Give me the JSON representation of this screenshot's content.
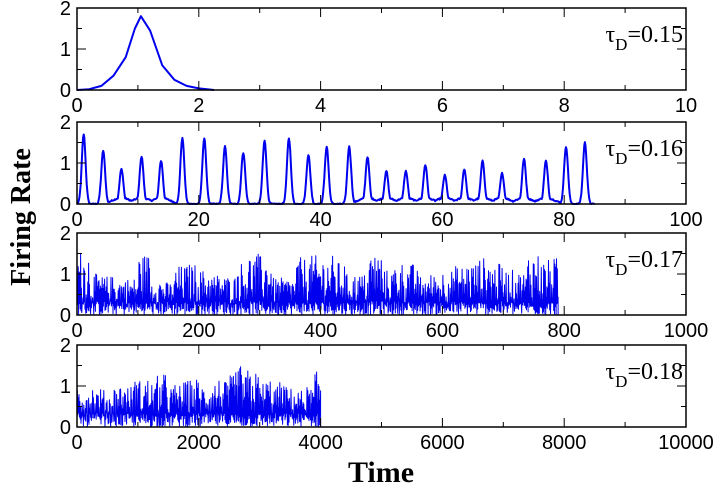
{
  "chart_data": {
    "type": "line",
    "ylabel": "Firing Rate",
    "xlabel": "Time",
    "line_color": "#0000ee",
    "grid": false,
    "panels": [
      {
        "annotation": {
          "tau": "τ",
          "sub": "D",
          "value": "=0.15"
        },
        "xlim": [
          0,
          10
        ],
        "ylim": [
          0,
          2
        ],
        "xticks": [
          "0",
          "2",
          "4",
          "6",
          "8",
          "10"
        ],
        "yticks": [
          "0",
          "1",
          "2"
        ],
        "x": [
          0,
          0.2,
          0.4,
          0.6,
          0.8,
          0.95,
          1.05,
          1.2,
          1.4,
          1.6,
          1.8,
          2.0,
          2.25
        ],
        "y": [
          0,
          0.02,
          0.1,
          0.35,
          0.8,
          1.5,
          1.8,
          1.45,
          0.6,
          0.25,
          0.1,
          0.04,
          0
        ]
      },
      {
        "annotation": {
          "tau": "τ",
          "sub": "D",
          "value": "=0.16"
        },
        "xlim": [
          0,
          100
        ],
        "ylim": [
          0,
          2
        ],
        "xticks": [
          "0",
          "20",
          "40",
          "60",
          "80",
          "100"
        ],
        "yticks": [
          "0",
          "1",
          "2"
        ],
        "x_end": 85,
        "peak_times": [
          1.1,
          4.3,
          7.3,
          10.6,
          13.8,
          17.3,
          20.9,
          24.3,
          27.3,
          30.8,
          34.8,
          38,
          41,
          44.7,
          47.7,
          50.8,
          54,
          57.2,
          60.4,
          63.6,
          66.6,
          69.8,
          73.4,
          77,
          80.3,
          83.4
        ],
        "peak_values": [
          1.7,
          1.3,
          0.85,
          1.15,
          1.05,
          1.6,
          1.6,
          1.4,
          1.25,
          1.55,
          1.6,
          1.2,
          1.4,
          1.4,
          1.15,
          0.8,
          0.8,
          0.95,
          0.7,
          0.85,
          1.05,
          0.75,
          1.1,
          1.05,
          1.4,
          1.5
        ]
      },
      {
        "annotation": {
          "tau": "τ",
          "sub": "D",
          "value": "=0.17"
        },
        "xlim": [
          0,
          1000
        ],
        "ylim": [
          0,
          2
        ],
        "xticks": [
          "0",
          "200",
          "400",
          "600",
          "800",
          "1000"
        ],
        "yticks": [
          "0",
          "1",
          "2"
        ],
        "x_end": 790,
        "envelope_step": 20,
        "envelope_max": [
          1.6,
          1.0,
          0.95,
          0.9,
          0.9,
          1.5,
          0.9,
          0.8,
          1.2,
          1.25,
          1.1,
          1.0,
          0.95,
          1.3,
          1.5,
          1.45,
          0.9,
          0.9,
          1.4,
          1.45,
          1.45,
          1.3,
          1.0,
          1.0,
          1.55,
          1.1,
          1.3,
          1.25,
          0.95,
          1.0,
          1.1,
          1.2,
          1.3,
          1.4,
          1.25,
          1.1,
          1.05,
          1.55,
          1.35,
          1.4
        ]
      },
      {
        "annotation": {
          "tau": "τ",
          "sub": "D",
          "value": "=0.18"
        },
        "xlim": [
          0,
          10000
        ],
        "ylim": [
          0,
          2
        ],
        "xticks": [
          "0",
          "2000",
          "4000",
          "6000",
          "8000",
          "10000"
        ],
        "yticks": [
          "0",
          "1",
          "2"
        ],
        "x_end": 4000,
        "envelope_step": 100,
        "envelope_max": [
          1.1,
          1.0,
          1.05,
          0.95,
          0.9,
          0.8,
          1.0,
          1.05,
          1.0,
          1.2,
          1.15,
          1.2,
          1.1,
          1.25,
          1.3,
          1.0,
          1.05,
          1.1,
          1.15,
          1.2,
          1.05,
          1.1,
          1.15,
          1.2,
          1.1,
          1.25,
          1.5,
          1.3,
          1.4,
          1.35,
          1.1,
          1.2,
          1.0,
          1.1,
          1.0,
          0.95,
          0.9,
          1.0,
          0.95,
          1.35
        ]
      }
    ]
  }
}
